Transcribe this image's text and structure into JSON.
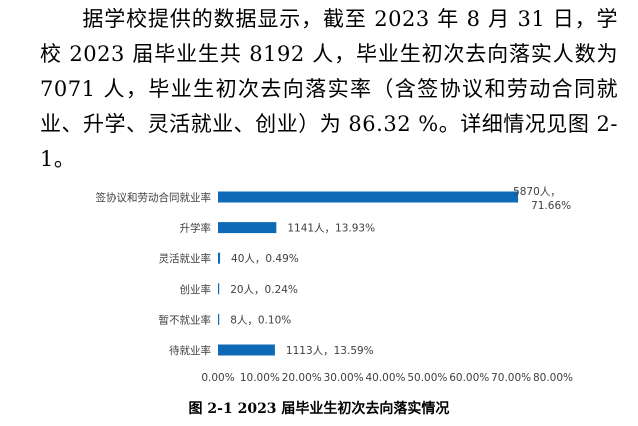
{
  "paragraph": {
    "text": "据学校提供的数据显示，截至 2023 年 8 月 31 日，学校 2023 届毕业生共 8192 人，毕业生初次去向落实人数为 7071 人，毕业生初次去向落实率（含签协议和劳动合同就业、升学、灵活就业、创业）为 86.32 %。详细情况见图 2-1。"
  },
  "chart_data": {
    "type": "bar",
    "orientation": "horizontal",
    "categories": [
      "签协议和劳动合同就业率",
      "升学率",
      "灵活就业率",
      "创业率",
      "暂不就业率",
      "待就业率"
    ],
    "values": [
      71.66,
      13.93,
      0.49,
      0.24,
      0.1,
      13.59
    ],
    "data_labels": [
      [
        "5870人，",
        "71.66%"
      ],
      [
        "1141人，13.93%"
      ],
      [
        "40人，0.49%"
      ],
      [
        "20人，0.24%"
      ],
      [
        "8人，0.10%"
      ],
      [
        "1113人，13.59%"
      ]
    ],
    "xlim": [
      0,
      80
    ],
    "x_ticks": [
      "0.00%",
      "10.00%",
      "20.00%",
      "30.00%",
      "40.00%",
      "50.00%",
      "60.00%",
      "70.00%",
      "80.00%"
    ],
    "bar_color": "#0e6ab7",
    "grid": false,
    "legend": "none"
  },
  "caption": "图 2-1  2023 届毕业生初次去向落实情况"
}
